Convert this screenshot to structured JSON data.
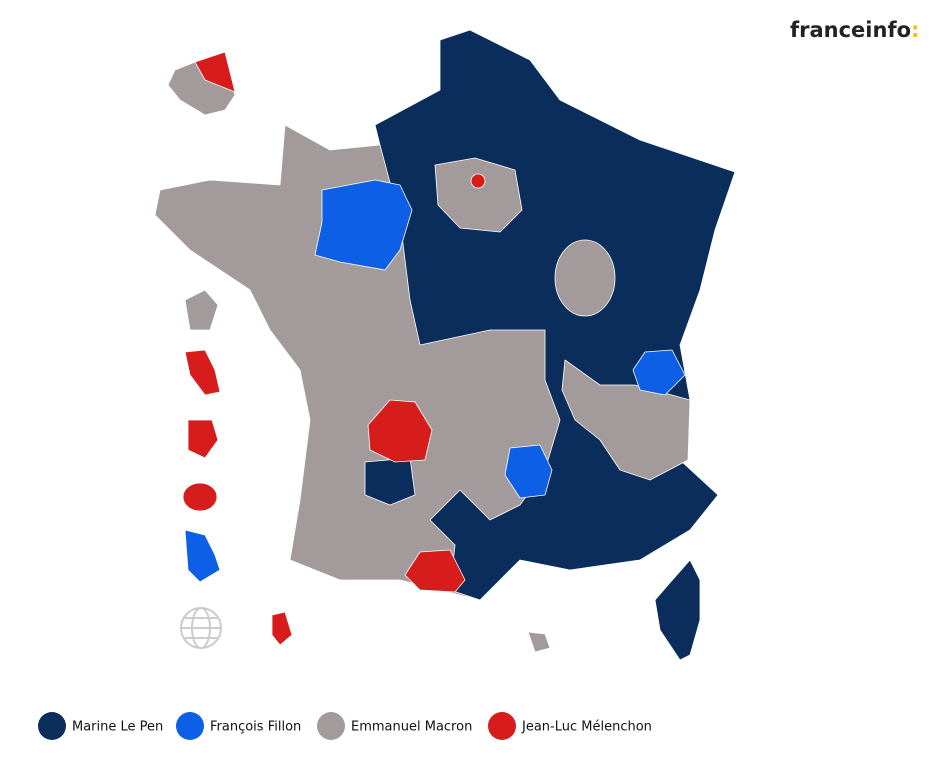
{
  "brand": {
    "name": "franceinfo",
    "suffix": ":",
    "suffix_color": "#f5c400"
  },
  "legend": [
    {
      "name": "Marine Le Pen",
      "color": "#0b2d5c"
    },
    {
      "name": "François Fillon",
      "color": "#0d5fe6"
    },
    {
      "name": "Emmanuel Macron",
      "color": "#a39b9b"
    },
    {
      "name": "Jean-Luc Mélenchon",
      "color": "#d71c1c"
    }
  ]
}
